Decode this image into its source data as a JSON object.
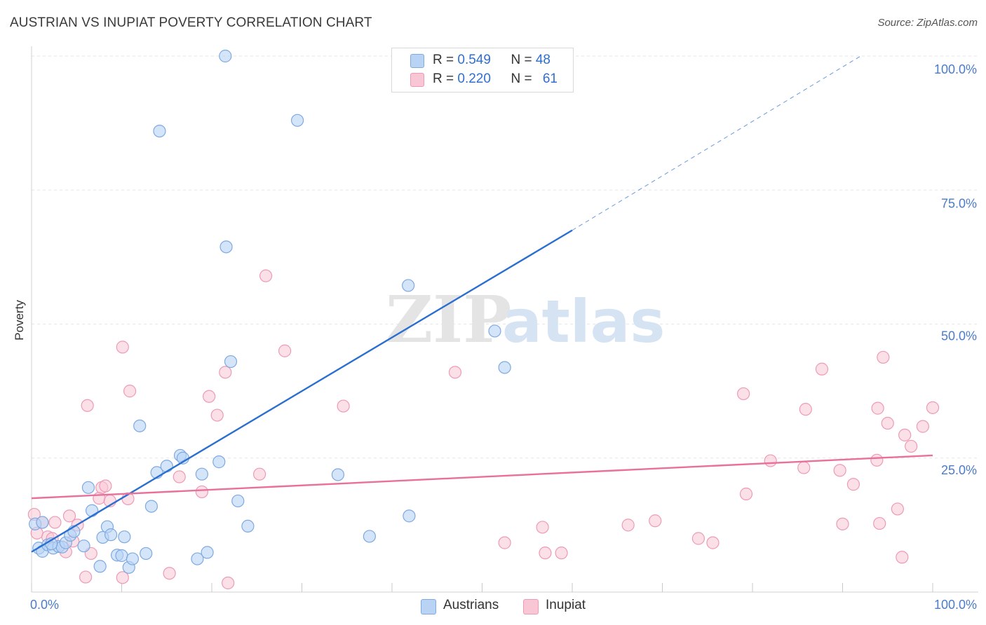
{
  "title": "AUSTRIAN VS INUPIAT POVERTY CORRELATION CHART",
  "source": "Source: ZipAtlas.com",
  "watermark": {
    "zip": "ZIP",
    "atlas": "atlas"
  },
  "legend": {
    "austrians": {
      "r_label": "R = ",
      "r": "0.549",
      "n_label": "N = ",
      "n": "48"
    },
    "inupiat": {
      "r_label": "R = ",
      "r": "0.220",
      "n_label": "N = ",
      "n": "61"
    }
  },
  "colors": {
    "austrians_fill": "#b9d3f5",
    "austrians_stroke": "#7ea9e1",
    "austrians_line": "#2a6fd0",
    "inupiat_fill": "#f9c6d6",
    "inupiat_stroke": "#ee9ab5",
    "inupiat_line": "#e8709a",
    "grid": "#e6e6e6",
    "axis_text": "#4a7cc9"
  },
  "chart_data": {
    "type": "scatter",
    "title": "AUSTRIAN VS INUPIAT POVERTY CORRELATION CHART",
    "xlabel": "",
    "ylabel": "Poverty",
    "xlim": [
      0,
      100
    ],
    "ylim": [
      0,
      100
    ],
    "x_tick_labels": [
      "0.0%",
      "100.0%"
    ],
    "y_tick_labels": [
      "25.0%",
      "50.0%",
      "75.0%",
      "100.0%"
    ],
    "y_ticks": [
      25,
      50,
      75,
      100
    ],
    "legend_position": "bottom-center",
    "series": [
      {
        "name": "Austrians",
        "trend": {
          "x0": 0,
          "y0": 7.5,
          "x1": 60,
          "y1": 67.5,
          "dash_to_x": 92,
          "dash_to_y": 100
        },
        "points": [
          [
            0.4,
            12.7
          ],
          [
            0.8,
            8.2
          ],
          [
            1.2,
            7.6
          ],
          [
            1.8,
            8.8
          ],
          [
            2.4,
            8.2
          ],
          [
            3.0,
            8.5
          ],
          [
            3.4,
            8.4
          ],
          [
            3.8,
            9.2
          ],
          [
            4.3,
            10.6
          ],
          [
            4.7,
            11.3
          ],
          [
            5.8,
            8.6
          ],
          [
            6.3,
            19.5
          ],
          [
            6.7,
            15.2
          ],
          [
            7.6,
            4.8
          ],
          [
            7.9,
            10.2
          ],
          [
            8.4,
            12.2
          ],
          [
            8.8,
            10.7
          ],
          [
            9.5,
            6.9
          ],
          [
            10.0,
            6.8
          ],
          [
            10.3,
            10.3
          ],
          [
            10.8,
            4.6
          ],
          [
            11.2,
            6.2
          ],
          [
            12.0,
            31.0
          ],
          [
            12.7,
            7.2
          ],
          [
            13.3,
            16.0
          ],
          [
            13.9,
            22.3
          ],
          [
            14.2,
            86.0
          ],
          [
            15.0,
            23.5
          ],
          [
            16.5,
            25.5
          ],
          [
            16.8,
            25.0
          ],
          [
            18.4,
            6.2
          ],
          [
            18.9,
            22.0
          ],
          [
            19.5,
            7.4
          ],
          [
            20.8,
            24.3
          ],
          [
            21.5,
            100.0
          ],
          [
            21.6,
            64.4
          ],
          [
            22.1,
            43.0
          ],
          [
            22.9,
            17.0
          ],
          [
            24.0,
            12.3
          ],
          [
            29.5,
            88.0
          ],
          [
            34.0,
            21.9
          ],
          [
            37.5,
            10.4
          ],
          [
            41.8,
            57.2
          ],
          [
            41.9,
            14.2
          ],
          [
            51.4,
            48.7
          ],
          [
            52.5,
            41.9
          ],
          [
            1.2,
            13.0
          ],
          [
            2.2,
            9.0
          ]
        ]
      },
      {
        "name": "Inupiat",
        "trend": {
          "x0": 0,
          "y0": 17.5,
          "x1": 100,
          "y1": 25.5
        },
        "points": [
          [
            0.3,
            14.5
          ],
          [
            0.6,
            11.0
          ],
          [
            1.2,
            13.0
          ],
          [
            1.8,
            10.3
          ],
          [
            2.3,
            10.0
          ],
          [
            2.6,
            13.0
          ],
          [
            3.8,
            7.5
          ],
          [
            4.2,
            14.2
          ],
          [
            4.6,
            9.5
          ],
          [
            5.1,
            12.5
          ],
          [
            6.0,
            2.8
          ],
          [
            6.2,
            34.8
          ],
          [
            6.6,
            7.2
          ],
          [
            7.5,
            17.5
          ],
          [
            7.8,
            19.5
          ],
          [
            8.2,
            19.8
          ],
          [
            8.7,
            17.0
          ],
          [
            10.1,
            2.7
          ],
          [
            10.1,
            45.7
          ],
          [
            10.9,
            37.5
          ],
          [
            15.3,
            3.5
          ],
          [
            16.4,
            21.5
          ],
          [
            18.9,
            18.7
          ],
          [
            19.7,
            36.5
          ],
          [
            20.6,
            33.0
          ],
          [
            21.5,
            41.0
          ],
          [
            21.8,
            1.7
          ],
          [
            25.3,
            22.0
          ],
          [
            26.0,
            59.0
          ],
          [
            28.1,
            45.0
          ],
          [
            34.6,
            34.7
          ],
          [
            47.0,
            41.0
          ],
          [
            52.5,
            9.2
          ],
          [
            56.7,
            12.1
          ],
          [
            57.0,
            7.3
          ],
          [
            58.8,
            7.3
          ],
          [
            66.2,
            12.5
          ],
          [
            69.2,
            13.3
          ],
          [
            74.0,
            10.0
          ],
          [
            75.6,
            9.2
          ],
          [
            79.0,
            37.0
          ],
          [
            79.3,
            18.3
          ],
          [
            82.0,
            24.5
          ],
          [
            85.7,
            23.2
          ],
          [
            85.9,
            34.1
          ],
          [
            87.7,
            41.6
          ],
          [
            89.7,
            22.7
          ],
          [
            90.0,
            12.7
          ],
          [
            91.2,
            20.1
          ],
          [
            93.8,
            24.6
          ],
          [
            93.9,
            34.3
          ],
          [
            94.1,
            12.8
          ],
          [
            94.5,
            43.8
          ],
          [
            95.0,
            31.5
          ],
          [
            96.1,
            15.5
          ],
          [
            96.6,
            6.5
          ],
          [
            96.9,
            29.3
          ],
          [
            97.6,
            27.2
          ],
          [
            98.9,
            30.9
          ],
          [
            100.0,
            34.4
          ],
          [
            10.7,
            17.4
          ]
        ]
      }
    ]
  },
  "bottom_legend": {
    "austrians": "Austrians",
    "inupiat": "Inupiat"
  }
}
